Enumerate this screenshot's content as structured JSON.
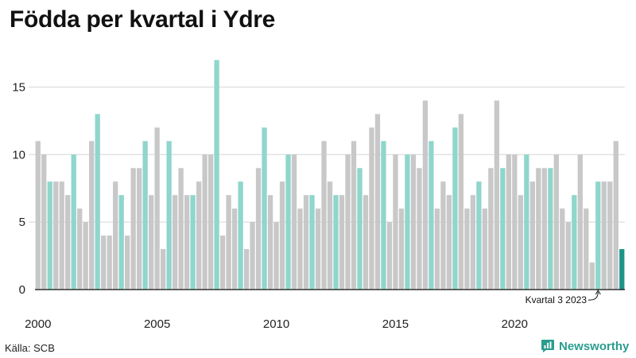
{
  "title": "Födda per kvartal i Ydre",
  "source": "Källa: SCB",
  "brand": "Newsworthy",
  "colors": {
    "grey": "#c8c8c8",
    "teal": "#8fd6cc",
    "highlight": "#1e9488",
    "axis": "#111111",
    "grid": "#d6d6d6"
  },
  "chart_data": {
    "type": "bar",
    "x_start": "2000 Q1",
    "x_tick_labels": [
      "2000",
      "2005",
      "2010",
      "2015",
      "2020"
    ],
    "y_tick_labels": [
      "0",
      "5",
      "10",
      "15"
    ],
    "ylim": [
      0,
      17.5
    ],
    "grid": true,
    "note": "Quarterly births; Q3 bars in teal, latest quarter highlighted.",
    "values": [
      11,
      10,
      8,
      8,
      8,
      7,
      10,
      6,
      5,
      11,
      13,
      4,
      4,
      8,
      7,
      4,
      9,
      9,
      11,
      7,
      12,
      3,
      11,
      7,
      9,
      7,
      7,
      8,
      10,
      10,
      17,
      4,
      7,
      6,
      8,
      3,
      5,
      9,
      12,
      7,
      5,
      8,
      10,
      10,
      6,
      7,
      7,
      6,
      11,
      8,
      7,
      7,
      10,
      11,
      9,
      7,
      12,
      13,
      11,
      5,
      10,
      6,
      10,
      10,
      9,
      14,
      11,
      6,
      8,
      7,
      12,
      13,
      6,
      7,
      8,
      6,
      9,
      14,
      9,
      10,
      10,
      7,
      10,
      8,
      9,
      9,
      9,
      10,
      6,
      5,
      7,
      10,
      6,
      2,
      8,
      8,
      8,
      11,
      3
    ],
    "annotation": {
      "text": "Kvartal 3 2023",
      "index": 94
    }
  }
}
